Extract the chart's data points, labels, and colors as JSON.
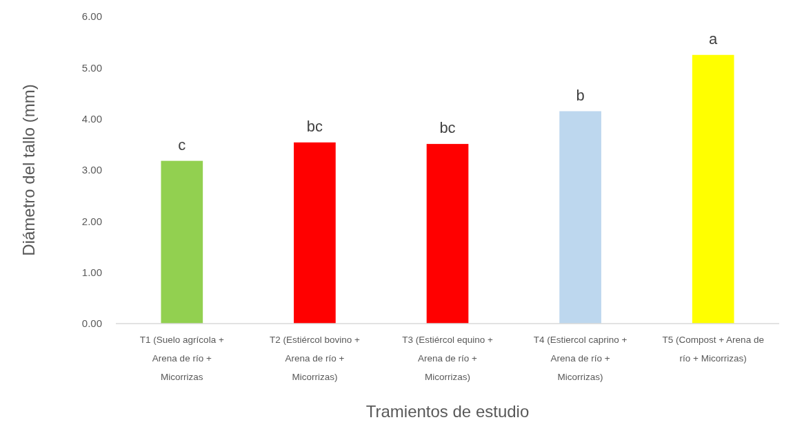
{
  "chart_data": {
    "type": "bar",
    "xlabel": "Tramientos de estudio",
    "ylabel": "Diámetro del tallo (mm)",
    "categories": [
      "T1 (Suelo agrícola + Arena de río + Micorrizas",
      "T2 (Estiércol bovino + Arena de río + Micorrizas)",
      "T3 (Estiércol equino + Arena de río + Micorrizas)",
      "T4 (Estiercol caprino + Arena de río + Micorrizas)",
      "T5 (Compost + Arena de río + Micorrizas)"
    ],
    "values": [
      3.18,
      3.54,
      3.51,
      4.15,
      5.25
    ],
    "colors": [
      "#92d050",
      "#ff0000",
      "#ff0000",
      "#bdd7ee",
      "#ffff00"
    ],
    "ylim": [
      0,
      6
    ],
    "yticks": [
      {
        "value": 0,
        "label": "0.00"
      },
      {
        "value": 1,
        "label": "1.00"
      },
      {
        "value": 2,
        "label": "2.00"
      },
      {
        "value": 3,
        "label": "3.00"
      },
      {
        "value": 4,
        "label": "4.00"
      },
      {
        "value": 5,
        "label": "5.00"
      },
      {
        "value": 6,
        "label": "6.00"
      }
    ],
    "grid": false,
    "annotations": [
      {
        "text": "c",
        "x": "T1 (Suelo agrícola + Arena de río + Micorrizas",
        "y": 3.18
      },
      {
        "text": "bc",
        "x": "T2 (Estiércol bovino + Arena de río + Micorrizas)",
        "y": 3.54
      },
      {
        "text": "bc",
        "x": "T3 (Estiércol equino + Arena de río + Micorrizas)",
        "y": 3.51
      },
      {
        "text": "b",
        "x": "T4 (Estiercol caprino + Arena de río + Micorrizas)",
        "y": 4.15
      },
      {
        "text": "a",
        "x": "T5 (Compost + Arena de río + Micorrizas)",
        "y": 5.25
      }
    ]
  }
}
